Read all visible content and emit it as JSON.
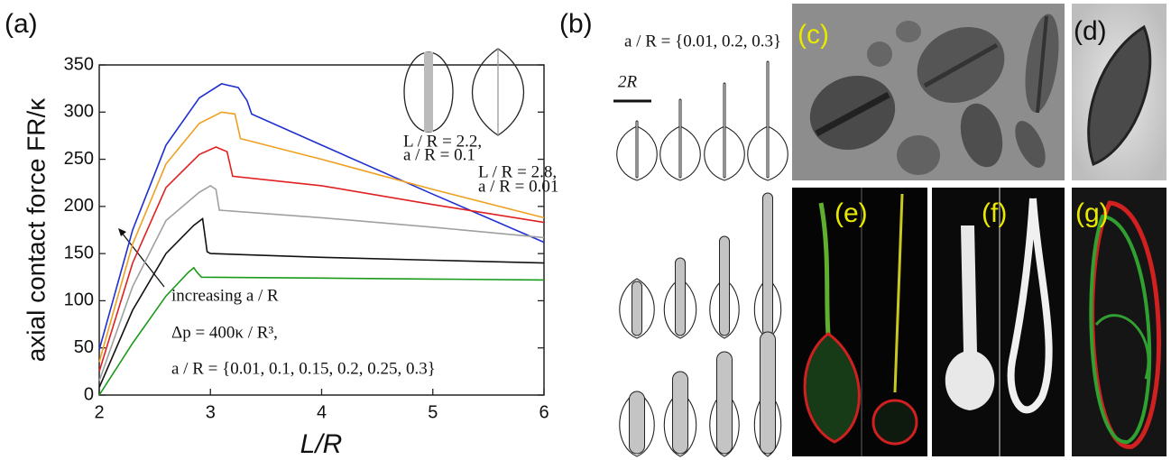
{
  "chart_data": {
    "type": "line",
    "panel_label": "(a)",
    "x_label": "L/R",
    "y_label": "axial contact force FR/κ",
    "xlim": [
      2,
      6
    ],
    "xticks": [
      2,
      3,
      4,
      5,
      6
    ],
    "ylim": [
      0,
      350
    ],
    "yticks": [
      0,
      50,
      100,
      150,
      200,
      250,
      300,
      350
    ],
    "annotations": [
      "increasing a / R",
      "Δp = 400κ / R³,",
      "a / R = {0.01, 0.1, 0.15, 0.2, 0.25, 0.3}"
    ],
    "inset_labels": [
      "L / R = 2.2,",
      "a / R = 0.1",
      "L / R = 2.8,",
      "a / R = 0.01"
    ],
    "series": [
      {
        "color": "#1f2fd0",
        "x": [
          2,
          2.3,
          2.6,
          2.9,
          3.1,
          3.25,
          3.33,
          3.37,
          4,
          5,
          6
        ],
        "values": [
          48,
          175,
          265,
          315,
          330,
          326,
          312,
          298,
          265,
          213,
          162
        ]
      },
      {
        "color": "#f0a020",
        "x": [
          2,
          2.3,
          2.6,
          2.9,
          3.1,
          3.22,
          3.27,
          4,
          5,
          6
        ],
        "values": [
          35,
          160,
          245,
          288,
          300,
          298,
          272,
          250,
          218,
          188
        ]
      },
      {
        "color": "#e02020",
        "x": [
          2,
          2.3,
          2.6,
          2.9,
          3.05,
          3.15,
          3.2,
          4,
          5,
          6
        ],
        "values": [
          25,
          140,
          220,
          255,
          263,
          258,
          232,
          222,
          202,
          183
        ]
      },
      {
        "color": "#a0a0a0",
        "x": [
          2,
          2.3,
          2.6,
          2.9,
          3.0,
          3.05,
          3.08,
          4,
          5,
          6
        ],
        "values": [
          15,
          115,
          185,
          215,
          222,
          218,
          196,
          188,
          178,
          167
        ]
      },
      {
        "color": "#111111",
        "x": [
          2,
          2.3,
          2.6,
          2.85,
          2.93,
          2.97,
          3.0,
          4,
          5,
          6
        ],
        "values": [
          8,
          90,
          150,
          180,
          187,
          152,
          150,
          146,
          143,
          140
        ]
      },
      {
        "color": "#1a9a1a",
        "x": [
          2,
          2.3,
          2.6,
          2.8,
          2.85,
          2.88,
          2.92,
          4,
          5,
          6
        ],
        "values": [
          0,
          55,
          105,
          130,
          135,
          130,
          125,
          124,
          123,
          122
        ]
      }
    ]
  },
  "panels": {
    "b": {
      "label": "(b)",
      "caption": "a / R = {0.01, 0.2, 0.3}",
      "scale": "2R"
    },
    "c": {
      "label": "(c)"
    },
    "d": {
      "label": "(d)"
    },
    "e": {
      "label": "(e)"
    },
    "f": {
      "label": "(f)"
    },
    "g": {
      "label": "(g)"
    }
  }
}
